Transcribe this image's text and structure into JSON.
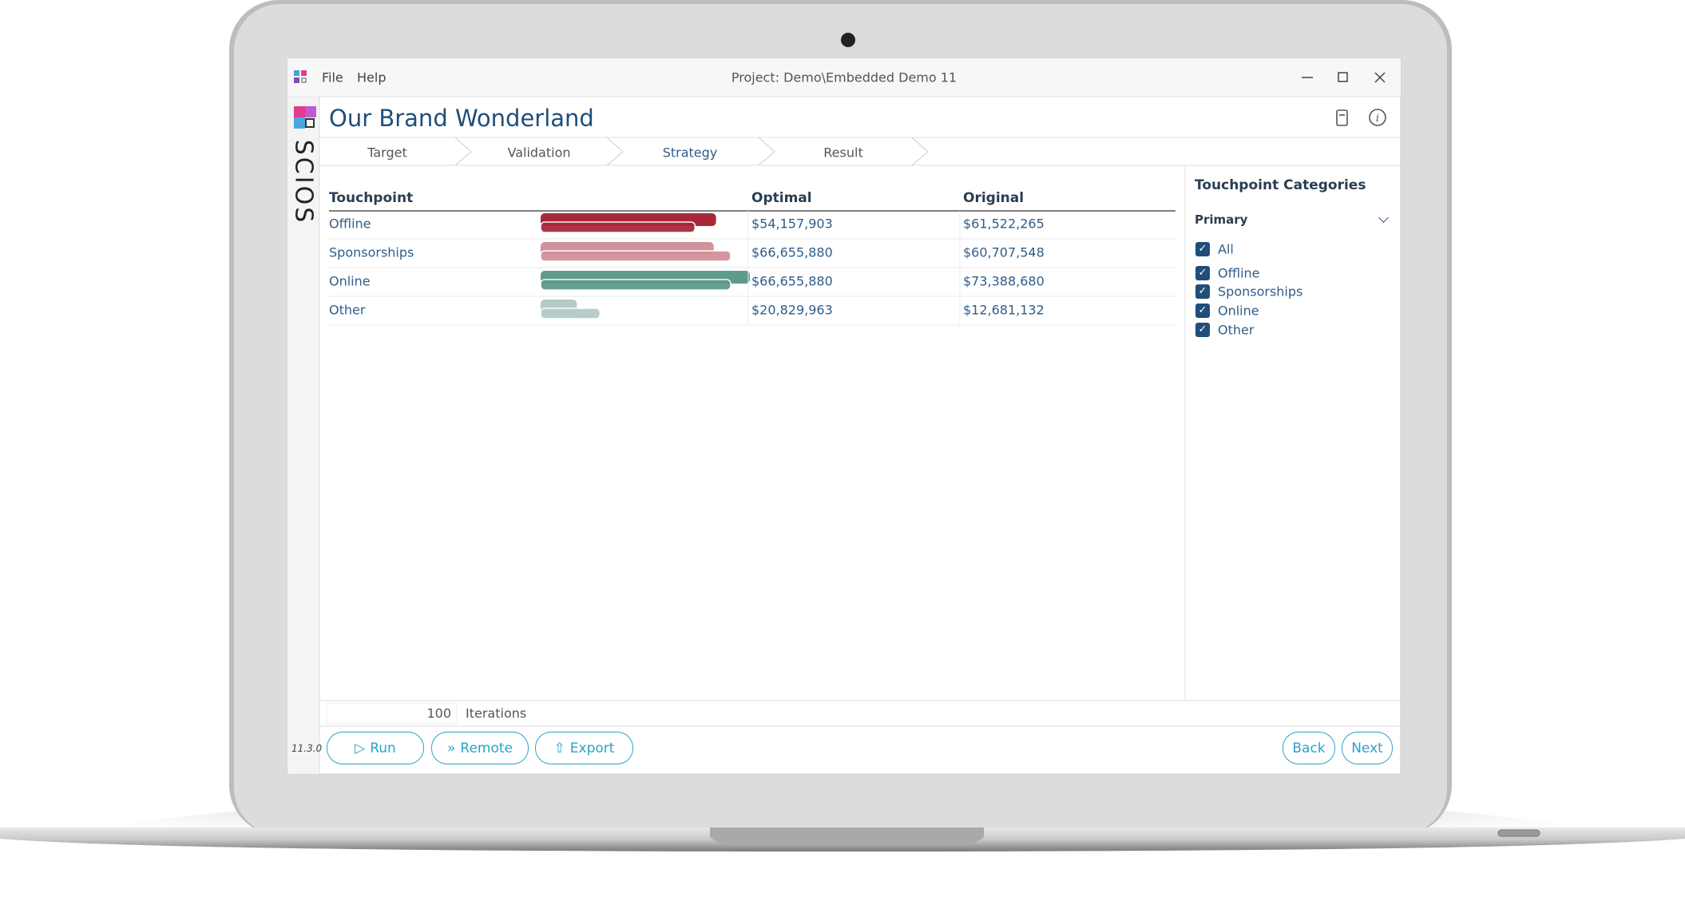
{
  "window": {
    "menu": [
      "File",
      "Help"
    ],
    "project": "Project: Demo\\Embedded Demo 11"
  },
  "sidebar": {
    "logo": "SCIOS",
    "version": "11.3.0"
  },
  "header": {
    "title": "Our Brand Wonderland"
  },
  "tabs": [
    "Target",
    "Validation",
    "Strategy",
    "Result"
  ],
  "active_tab": "Strategy",
  "table": {
    "columns": [
      "Touchpoint",
      "Optimal",
      "Original"
    ],
    "rows": [
      {
        "name": "Offline",
        "color": "#a8283a",
        "optimal": {
          "value": 54157903,
          "label": "$54,157,903"
        },
        "original": {
          "value": 61522265,
          "label": "$61,522,265"
        }
      },
      {
        "name": "Sponsorships",
        "color": "#d4919a",
        "optimal": {
          "value": 66655880,
          "label": "$66,655,880"
        },
        "original": {
          "value": 60707548,
          "label": "$60,707,548"
        }
      },
      {
        "name": "Online",
        "color": "#5f9a8c",
        "optimal": {
          "value": 66655880,
          "label": "$66,655,880"
        },
        "original": {
          "value": 73388680,
          "label": "$73,388,680"
        }
      },
      {
        "name": "Other",
        "color": "#b5cbc8",
        "optimal": {
          "value": 20829963,
          "label": "$20,829,963"
        },
        "original": {
          "value": 12681132,
          "label": "$12,681,132"
        }
      }
    ]
  },
  "panel": {
    "title": "Touchpoint Categories",
    "group": "Primary",
    "options": [
      {
        "label": "All",
        "checked": true
      },
      {
        "label": "Offline",
        "checked": true
      },
      {
        "label": "Sponsorships",
        "checked": true
      },
      {
        "label": "Online",
        "checked": true
      },
      {
        "label": "Other",
        "checked": true
      }
    ]
  },
  "iterations": {
    "value": 100,
    "label": "Iterations"
  },
  "buttons": {
    "left": [
      "Run",
      "Remote",
      "Export"
    ],
    "right": [
      "Back",
      "Next"
    ]
  }
}
